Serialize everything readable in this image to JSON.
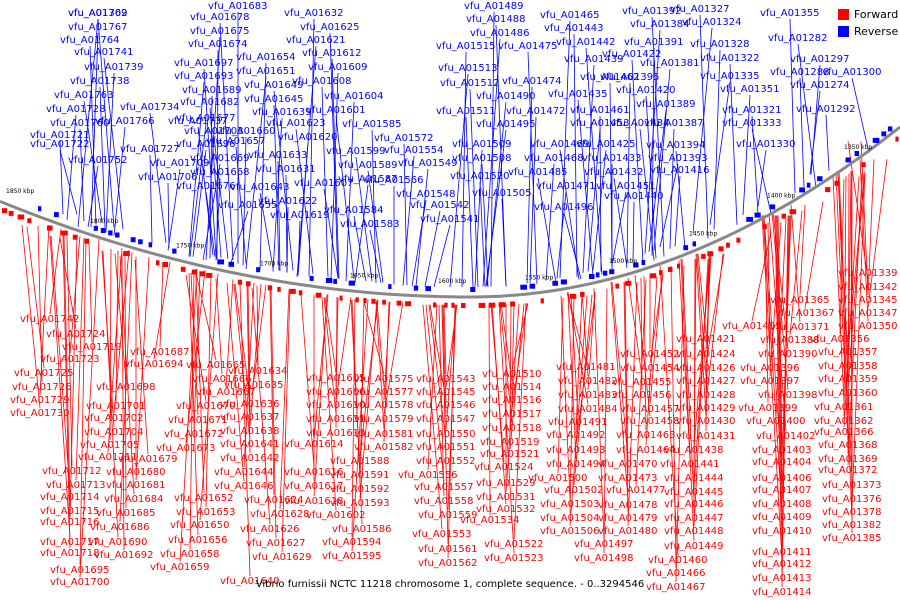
{
  "legend": {
    "forward": {
      "label": "Forward",
      "color": "#ff0000"
    },
    "reverse": {
      "label": "Reverse",
      "color": "#0000ff"
    }
  },
  "caption": "Vibrio furnissii NCTC 11218 chromosome 1, complete sequence. - 0..3294546",
  "ruler_ticks": [
    "1850 kbp",
    "1800 kbp",
    "1750 kbp",
    "1700 kbp",
    "1650 kbp",
    "1600 kbp",
    "1550 kbp",
    "1500 kbp",
    "1450 kbp",
    "1400 kbp",
    "1350 kbp"
  ],
  "reverse_labels": [
    "vfu_A01769",
    "vfu_A01767",
    "vfu_A01764",
    "vfu_A01741",
    "vfu_A01739",
    "vfu_A01738",
    "vfu_A01763",
    "vfu_A01728",
    "vfu_A01760",
    "vfu_A01722",
    "vfu_A01752",
    "vfu_A01721",
    "vfu_A01734",
    "vfu_A01766",
    "vfu_A01727",
    "vfu_A01737",
    "vfu_A01709",
    "vfu_A01706",
    "vfu_A01703",
    "vfu_A01696",
    "vfu_A01683",
    "vfu_A01678",
    "vfu_A01675",
    "vfu_A01674",
    "vfu_A01697",
    "vfu_A01693",
    "vfu_A01689",
    "vfu_A01682",
    "vfu_A01677",
    "vfu_A01660",
    "vfu_A01657",
    "vfu_A01669",
    "vfu_A01668",
    "vfu_A01676",
    "vfu_A01655",
    "vfu_A01632",
    "vfu_A01625",
    "vfu_A01621",
    "vfu_A01654",
    "vfu_A01612",
    "vfu_A01651",
    "vfu_A01609",
    "vfu_A01608",
    "vfu_A01649",
    "vfu_A01604",
    "vfu_A01645",
    "vfu_A01601",
    "vfu_A01639",
    "vfu_A01585",
    "vfu_A01623",
    "vfu_A01620",
    "vfu_A01572",
    "vfu_A01599",
    "vfu_A01554",
    "vfu_A01633",
    "vfu_A01589",
    "vfu_A01549",
    "vfu_A01631",
    "vfu_A01607",
    "vfu_A01587",
    "vfu_A01566",
    "vfu_A01643",
    "vfu_A01548",
    "vfu_A01622",
    "vfu_A01584",
    "vfu_A01542",
    "vfu_A01619",
    "vfu_A01583",
    "vfu_A01541",
    "vfu_A01489",
    "vfu_A01488",
    "vfu_A01486",
    "vfu_A01515",
    "vfu_A01475",
    "vfu_A01513",
    "vfu_A01474",
    "vfu_A01512",
    "vfu_A01490",
    "vfu_A01472",
    "vfu_A01511",
    "vfu_A01495",
    "vfu_A01509",
    "vfu_A01508",
    "vfu_A01469",
    "vfu_A01468",
    "vfu_A01520",
    "vfu_A01485",
    "vfu_A01471",
    "vfu_A01505",
    "vfu_A01496",
    "vfu_A01465",
    "vfu_A01443",
    "vfu_A01442",
    "vfu_A01439",
    "vfu_A01462",
    "vfu_A01435",
    "vfu_A01453",
    "vfu_A01461",
    "vfu_A01434",
    "vfu_A01425",
    "vfu_A01433",
    "vfu_A01432",
    "vfu_A01451",
    "vfu_A01440",
    "vfu_A01392",
    "vfu_A01384",
    "vfu_A01391",
    "vfu_A01422",
    "vfu_A01381",
    "vfu_A01395",
    "vfu_A01420",
    "vfu_A01389",
    "vfu_A01387",
    "vfu_A01394",
    "vfu_A01393",
    "vfu_A01416",
    "vfu_A01327",
    "vfu_A01324",
    "vfu_A01328",
    "vfu_A01322",
    "vfu_A01335",
    "vfu_A01351",
    "vfu_A01321",
    "vfu_A01333",
    "vfu_A01330",
    "vfu_A01355",
    "vfu_A01282",
    "vfu_A01297",
    "vfu_A01288",
    "vfu_A01300",
    "vfu_A01274",
    "vfu_A01292",
    "vfu_A01302"
  ],
  "forward_labels": [
    "vfu_A01339",
    "vfu_A01342",
    "vfu_A01345",
    "vfu_A01347",
    "vfu_A01350",
    "vfu_A01365",
    "vfu_A01367",
    "vfu_A01371",
    "vfu_A01356",
    "vfu_A01357",
    "vfu_A01358",
    "vfu_A01359",
    "vfu_A01360",
    "vfu_A01361",
    "vfu_A01362",
    "vfu_A01366",
    "vfu_A01368",
    "vfu_A01369",
    "vfu_A01372",
    "vfu_A01373",
    "vfu_A01376",
    "vfu_A01378",
    "vfu_A01382",
    "vfu_A01385",
    "vfu_A01388",
    "vfu_A01390",
    "vfu_A01396",
    "vfu_A01397",
    "vfu_A01398",
    "vfu_A01399",
    "vfu_A01400",
    "vfu_A01402",
    "vfu_A01403",
    "vfu_A01404",
    "vfu_A01406",
    "vfu_A01407",
    "vfu_A01408",
    "vfu_A01409",
    "vfu_A01410",
    "vfu_A01411",
    "vfu_A01412",
    "vfu_A01413",
    "vfu_A01414",
    "vfu_A01405",
    "vfu_A01421",
    "vfu_A01424",
    "vfu_A01426",
    "vfu_A01427",
    "vfu_A01428",
    "vfu_A01429",
    "vfu_A01430",
    "vfu_A01431",
    "vfu_A01438",
    "vfu_A01441",
    "vfu_A01444",
    "vfu_A01445",
    "vfu_A01446",
    "vfu_A01447",
    "vfu_A01448",
    "vfu_A01449",
    "vfu_A01452",
    "vfu_A01454",
    "vfu_A01455",
    "vfu_A01456",
    "vfu_A01457",
    "vfu_A01458",
    "vfu_A01463",
    "vfu_A01464",
    "vfu_A01470",
    "vfu_A01473",
    "vfu_A01477",
    "vfu_A01478",
    "vfu_A01479",
    "vfu_A01480",
    "vfu_A01460",
    "vfu_A01466",
    "vfu_A01467",
    "vfu_A01481",
    "vfu_A01482",
    "vfu_A01483",
    "vfu_A01484",
    "vfu_A01491",
    "vfu_A01492",
    "vfu_A01493",
    "vfu_A01494",
    "vfu_A01500",
    "vfu_A01502",
    "vfu_A01503",
    "vfu_A01504",
    "vfu_A01506",
    "vfu_A01497",
    "vfu_A01498",
    "vfu_A01510",
    "vfu_A01514",
    "vfu_A01516",
    "vfu_A01517",
    "vfu_A01518",
    "vfu_A01519",
    "vfu_A01521",
    "vfu_A01524",
    "vfu_A01529",
    "vfu_A01531",
    "vfu_A01532",
    "vfu_A01534",
    "vfu_A01522",
    "vfu_A01523",
    "vfu_A01543",
    "vfu_A01545",
    "vfu_A01546",
    "vfu_A01547",
    "vfu_A01550",
    "vfu_A01551",
    "vfu_A01552",
    "vfu_A01556",
    "vfu_A01557",
    "vfu_A01558",
    "vfu_A01559",
    "vfu_A01553",
    "vfu_A01561",
    "vfu_A01562",
    "vfu_A01575",
    "vfu_A01577",
    "vfu_A01578",
    "vfu_A01579",
    "vfu_A01581",
    "vfu_A01582",
    "vfu_A01588",
    "vfu_A01591",
    "vfu_A01592",
    "vfu_A01593",
    "vfu_A01586",
    "vfu_A01594",
    "vfu_A01595",
    "vfu_A01605",
    "vfu_A01606",
    "vfu_A01610",
    "vfu_A01611",
    "vfu_A01613",
    "vfu_A01614",
    "vfu_A01616",
    "vfu_A01617",
    "vfu_A01618",
    "vfu_A01602",
    "vfu_A01634",
    "vfu_A01635",
    "vfu_A01636",
    "vfu_A01637",
    "vfu_A01638",
    "vfu_A01641",
    "vfu_A01642",
    "vfu_A01644",
    "vfu_A01646",
    "vfu_A01624",
    "vfu_A01628",
    "vfu_A01626",
    "vfu_A01627",
    "vfu_A01629",
    "vfu_A01665",
    "vfu_A01666",
    "vfu_A01667",
    "vfu_A01670",
    "vfu_A01671",
    "vfu_A01672",
    "vfu_A01673",
    "vfu_A01652",
    "vfu_A01653",
    "vfu_A01650",
    "vfu_A01656",
    "vfu_A01658",
    "vfu_A01659",
    "vfu_A01640",
    "vfu_A01687",
    "vfu_A01694",
    "vfu_A01698",
    "vfu_A01701",
    "vfu_A01702",
    "vfu_A01704",
    "vfu_A01705",
    "vfu_A01711",
    "vfu_A01679",
    "vfu_A01680",
    "vfu_A01681",
    "vfu_A01684",
    "vfu_A01685",
    "vfu_A01686",
    "vfu_A01690",
    "vfu_A01692",
    "vfu_A01742",
    "vfu_A01724",
    "vfu_A01719",
    "vfu_A01723",
    "vfu_A01725",
    "vfu_A01726",
    "vfu_A01729",
    "vfu_A01730",
    "vfu_A01712",
    "vfu_A01713",
    "vfu_A01714",
    "vfu_A01715",
    "vfu_A01716",
    "vfu_A01717",
    "vfu_A01718",
    "vfu_A01695",
    "vfu_A01700"
  ]
}
